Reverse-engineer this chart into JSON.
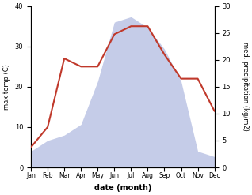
{
  "months": [
    "Jan",
    "Feb",
    "Mar",
    "Apr",
    "May",
    "Jun",
    "Jul",
    "Aug",
    "Sep",
    "Oct",
    "Nov",
    "Dec"
  ],
  "temperature": [
    5,
    10,
    27,
    25,
    25,
    33,
    35,
    35,
    28,
    22,
    22,
    14
  ],
  "precipitation": [
    3,
    5,
    6,
    8,
    16,
    27,
    28,
    26,
    22,
    16,
    3,
    2
  ],
  "temp_color": "#c0392b",
  "precip_fill_color": "#c5cce8",
  "temp_ylim": [
    0,
    40
  ],
  "precip_ylim": [
    0,
    30
  ],
  "temp_ylabel": "max temp (C)",
  "precip_ylabel": "med. precipitation (kg/m2)",
  "xlabel": "date (month)",
  "temp_yticks": [
    0,
    10,
    20,
    30,
    40
  ],
  "precip_yticks": [
    0,
    5,
    10,
    15,
    20,
    25,
    30
  ],
  "figsize": [
    3.18,
    2.47
  ],
  "dpi": 100
}
